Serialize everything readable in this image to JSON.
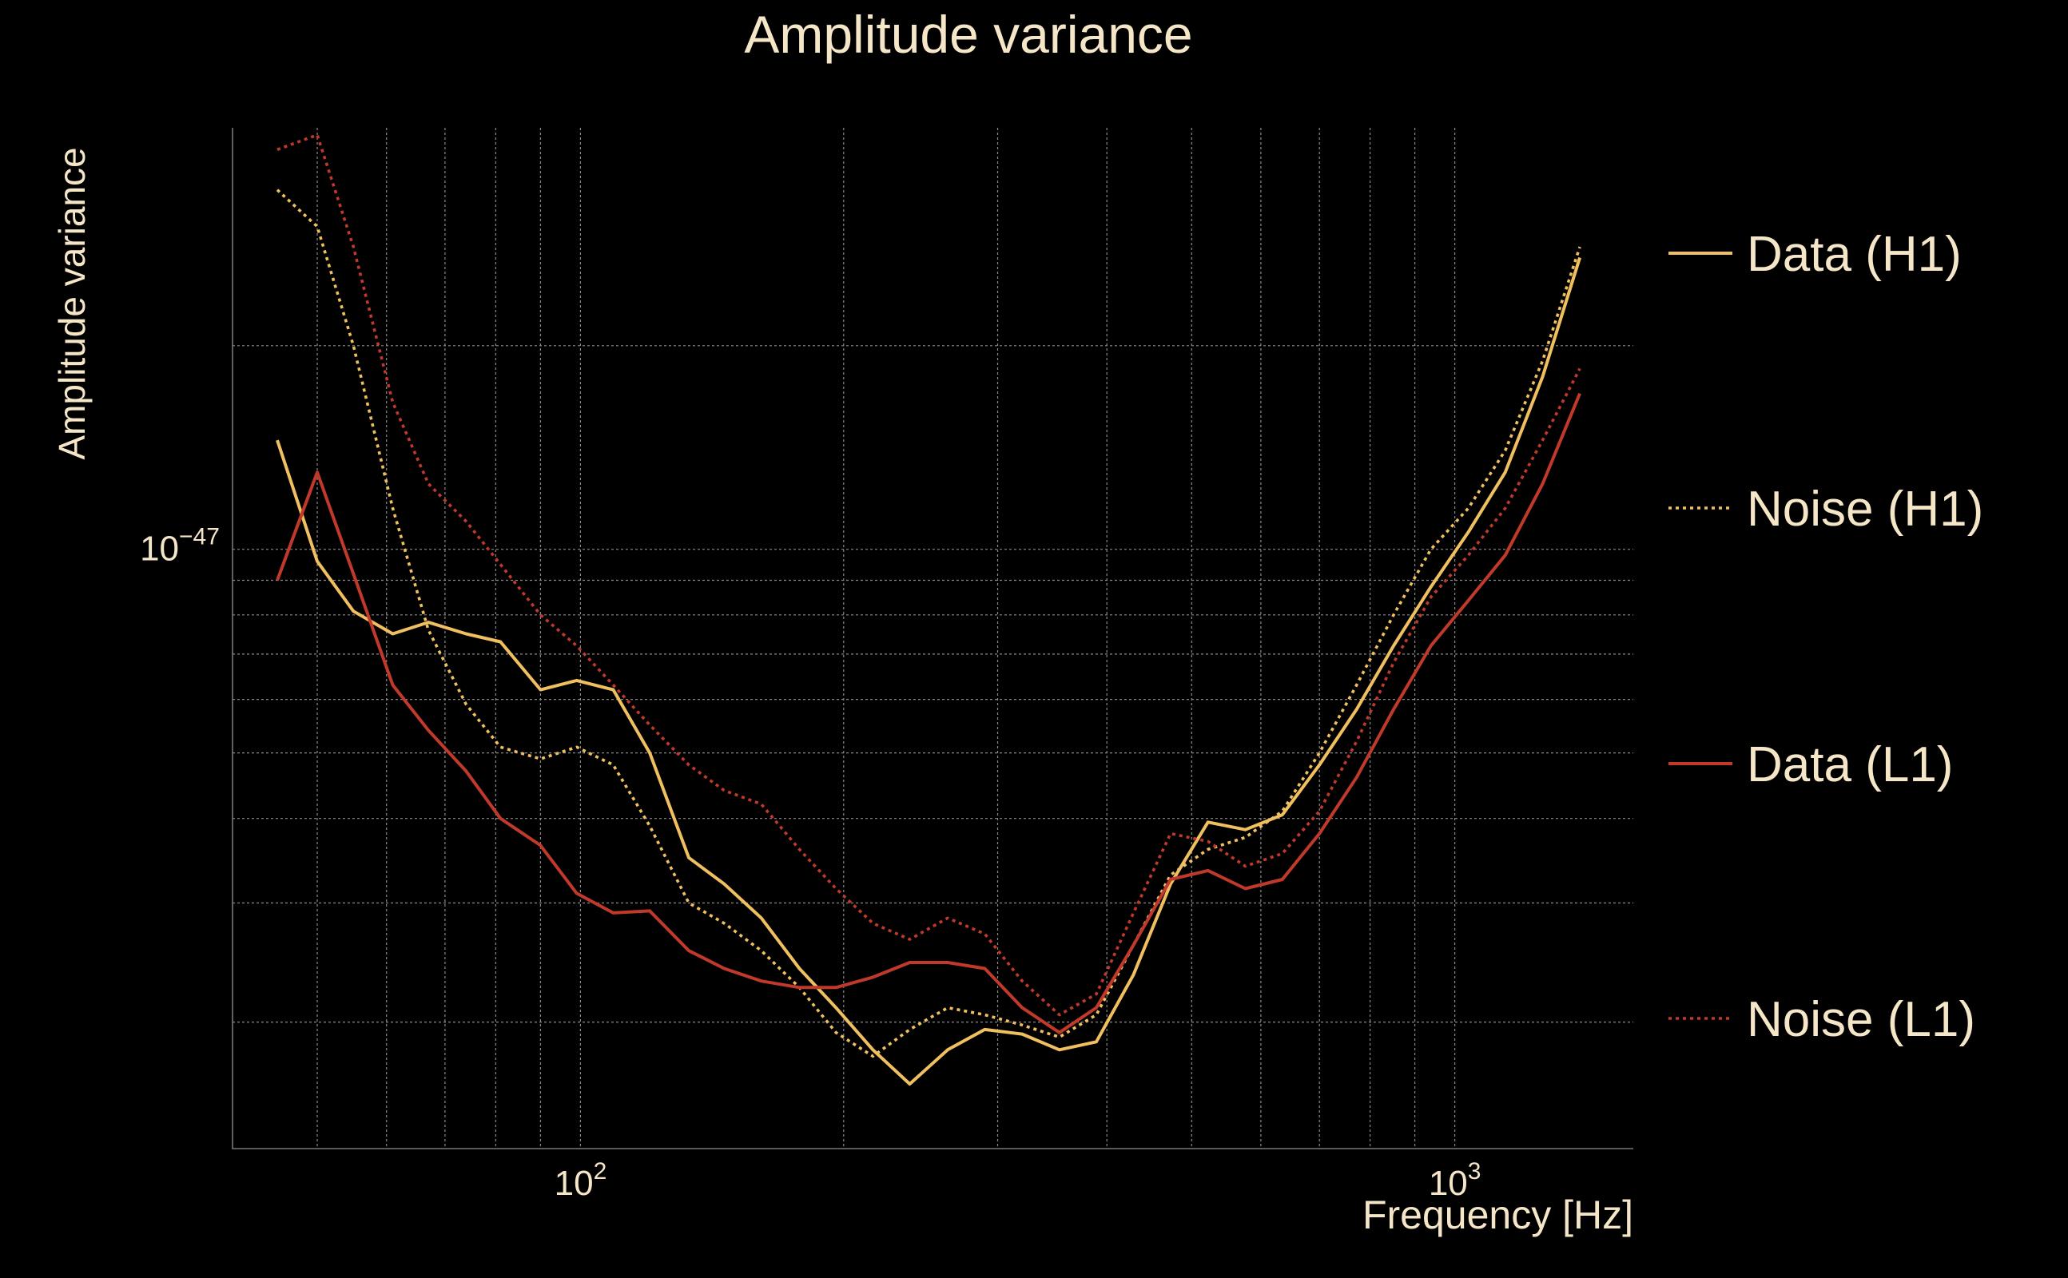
{
  "chart_data": {
    "type": "line",
    "title": "Amplitude variance",
    "xlabel": "Frequency [Hz]",
    "ylabel": "Amplitude variance",
    "xscale": "log",
    "yscale": "log",
    "xlim": [
      40,
      1600
    ],
    "ylim": [
      1.3e-48,
      4.2e-47
    ],
    "grid": true,
    "legend_position": "right",
    "x_major_ticks": [
      {
        "value": 100,
        "base": "10",
        "exp": "2"
      },
      {
        "value": 1000,
        "base": "10",
        "exp": "3"
      }
    ],
    "y_major_ticks": [
      {
        "value": 1e-47,
        "base": "10",
        "exp": "−47"
      }
    ],
    "x_minor_ticks": [
      50,
      60,
      70,
      80,
      90,
      200,
      300,
      400,
      500,
      600,
      700,
      800,
      900
    ],
    "y_minor_ticks": [
      2e-48,
      3e-48,
      4e-48,
      5e-48,
      6e-48,
      7e-48,
      8e-48,
      9e-48,
      2e-47
    ],
    "x": [
      45,
      50,
      55,
      61,
      67,
      74,
      81,
      90,
      99,
      109,
      120,
      133,
      146,
      161,
      178,
      196,
      216,
      238,
      263,
      290,
      320,
      353,
      389,
      429,
      473,
      522,
      576,
      635,
      700,
      772,
      851,
      939,
      1036,
      1142,
      1260,
      1390
    ],
    "series": [
      {
        "name": "Data (H1)",
        "color": "#f0c060",
        "style": "solid",
        "values": [
          1.45e-47,
          9.6e-48,
          8.1e-48,
          7.5e-48,
          7.8e-48,
          7.5e-48,
          7.3e-48,
          6.2e-48,
          6.4e-48,
          6.2e-48,
          5e-48,
          3.5e-48,
          3.2e-48,
          2.85e-48,
          2.4e-48,
          2.1e-48,
          1.82e-48,
          1.62e-48,
          1.82e-48,
          1.95e-48,
          1.92e-48,
          1.82e-48,
          1.87e-48,
          2.35e-48,
          3.2e-48,
          3.95e-48,
          3.85e-48,
          4.05e-48,
          4.8e-48,
          5.8e-48,
          7.2e-48,
          8.8e-48,
          1.06e-47,
          1.3e-47,
          1.8e-47,
          2.7e-47
        ]
      },
      {
        "name": "Noise (H1)",
        "color": "#f0c060",
        "style": "dotted",
        "values": [
          3.4e-47,
          3e-47,
          2e-47,
          1.15e-47,
          7.6e-48,
          5.9e-48,
          5.1e-48,
          4.9e-48,
          5.1e-48,
          4.8e-48,
          3.9e-48,
          3e-48,
          2.8e-48,
          2.55e-48,
          2.25e-48,
          1.93e-48,
          1.78e-48,
          1.95e-48,
          2.1e-48,
          2.05e-48,
          1.98e-48,
          1.9e-48,
          2.05e-48,
          2.6e-48,
          3.3e-48,
          3.6e-48,
          3.75e-48,
          4.1e-48,
          5e-48,
          6.3e-48,
          8e-48,
          1e-47,
          1.15e-47,
          1.4e-47,
          1.9e-47,
          2.8e-47
        ]
      },
      {
        "name": "Data (L1)",
        "color": "#c0392b",
        "style": "solid",
        "values": [
          9e-48,
          1.3e-47,
          9.2e-48,
          6.3e-48,
          5.4e-48,
          4.7e-48,
          4e-48,
          3.65e-48,
          3.1e-48,
          2.9e-48,
          2.92e-48,
          2.55e-48,
          2.4e-48,
          2.3e-48,
          2.25e-48,
          2.25e-48,
          2.33e-48,
          2.45e-48,
          2.45e-48,
          2.4e-48,
          2.1e-48,
          1.93e-48,
          2.1e-48,
          2.6e-48,
          3.25e-48,
          3.35e-48,
          3.15e-48,
          3.25e-48,
          3.8e-48,
          4.6e-48,
          5.8e-48,
          7.2e-48,
          8.4e-48,
          9.8e-48,
          1.25e-47,
          1.7e-47
        ]
      },
      {
        "name": "Noise (L1)",
        "color": "#c0392b",
        "style": "dotted",
        "values": [
          3.9e-47,
          4.1e-47,
          2.8e-47,
          1.65e-47,
          1.25e-47,
          1.1e-47,
          9.5e-48,
          8e-48,
          7.2e-48,
          6.3e-48,
          5.5e-48,
          4.8e-48,
          4.4e-48,
          4.2e-48,
          3.6e-48,
          3.15e-48,
          2.8e-48,
          2.65e-48,
          2.85e-48,
          2.7e-48,
          2.3e-48,
          2.05e-48,
          2.2e-48,
          2.9e-48,
          3.8e-48,
          3.7e-48,
          3.4e-48,
          3.55e-48,
          4.1e-48,
          5.2e-48,
          6.8e-48,
          8.5e-48,
          9.8e-48,
          1.15e-47,
          1.45e-47,
          1.85e-47
        ]
      }
    ]
  }
}
